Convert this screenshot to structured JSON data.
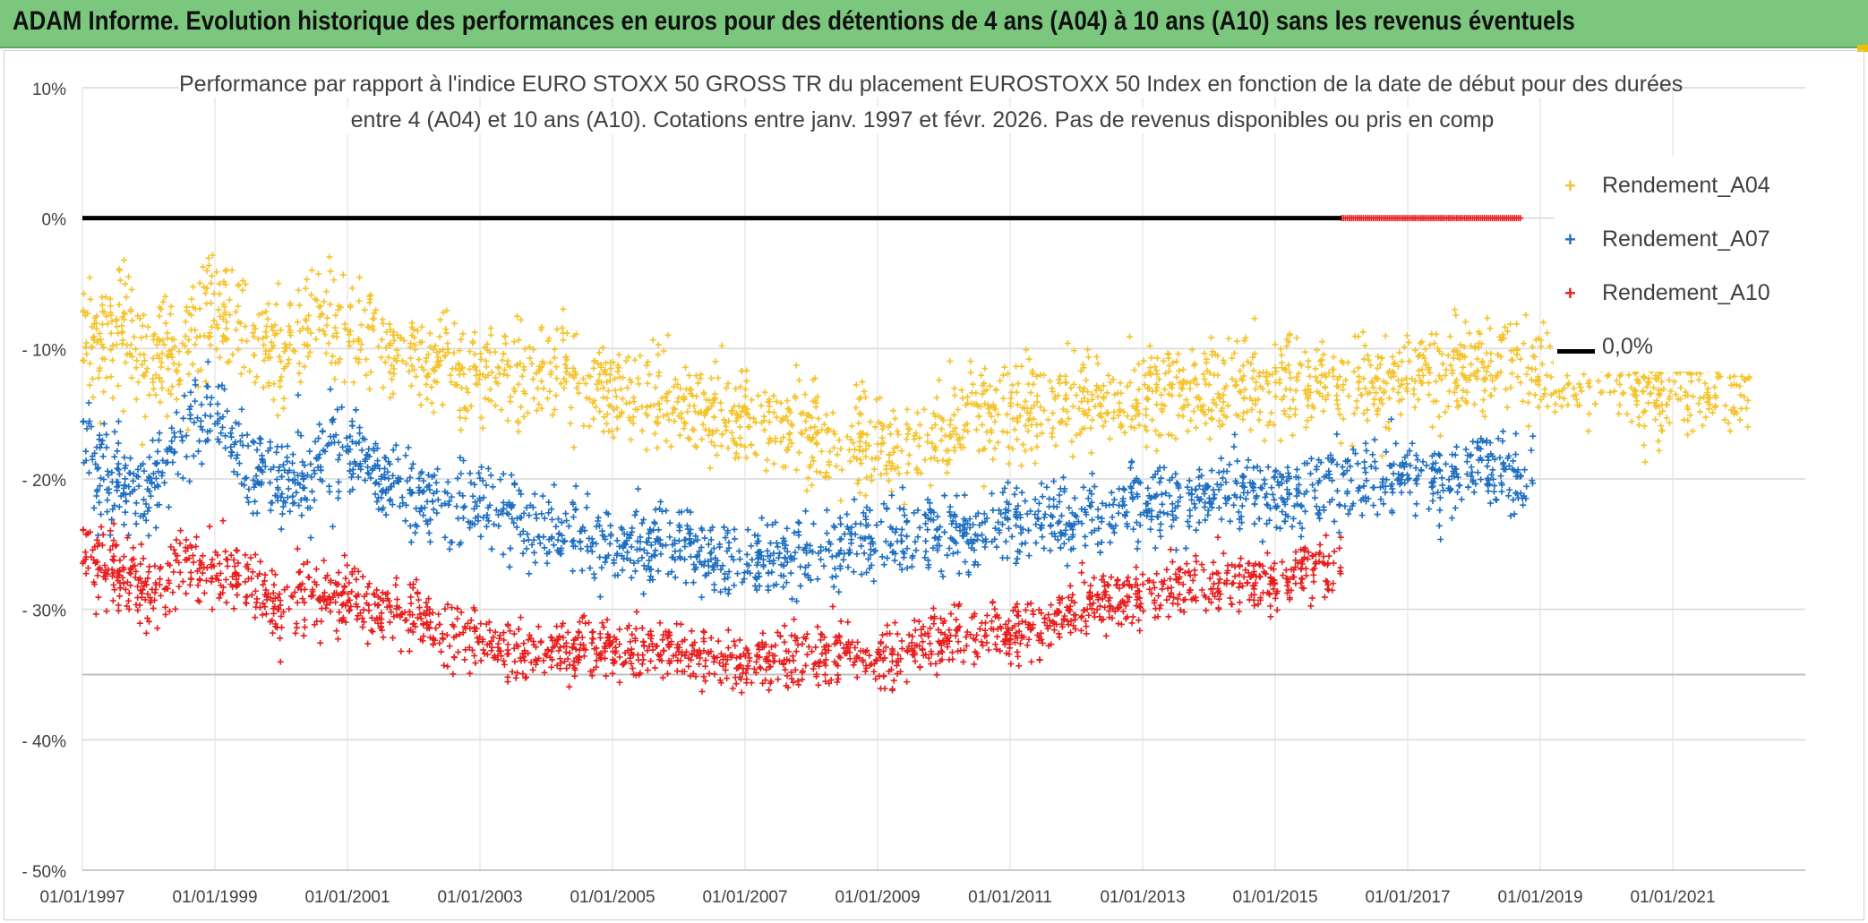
{
  "header": {
    "title": "ADAM Informe. Evolution historique des performances en euros pour des détentions de 4 ans (A04) à 10 ans (A10) sans les revenus éventuels"
  },
  "chart_data": {
    "type": "scatter",
    "title_line1": "Performance par rapport à l'indice EURO STOXX 50 GROSS TR  du placement EUROSTOXX 50 Index en fonction de la date de début pour des durées",
    "title_line2": "entre 4 (A04) et 10 ans (A10). Cotations entre janv. 1997 et févr. 2026. Pas de revenus disponibles ou pris en comp",
    "x_range": [
      1997.0,
      2023.0
    ],
    "y_range": [
      -50,
      10
    ],
    "x_tick_labels": [
      "01/01/1997",
      "01/01/1999",
      "01/01/2001",
      "01/01/2003",
      "01/01/2005",
      "01/01/2007",
      "01/01/2009",
      "01/01/2011",
      "01/01/2013",
      "01/01/2015",
      "01/01/2017",
      "01/01/2019",
      "01/01/2021"
    ],
    "x_tick_years": [
      1997,
      1999,
      2001,
      2003,
      2005,
      2007,
      2009,
      2011,
      2013,
      2015,
      2017,
      2019,
      2021
    ],
    "y_tick_values": [
      10,
      0,
      -10,
      -20,
      -30,
      -40,
      -50
    ],
    "y_tick_labels": [
      "10%",
      "0%",
      "- 10%",
      "- 20%",
      "- 30%",
      "- 40%",
      "- 50%"
    ],
    "series": [
      {
        "name": "Rendement_A04",
        "color": "#f5c32c",
        "x": [
          1997.0,
          1997.5,
          1998.0,
          1998.5,
          1999.0,
          1999.5,
          2000.0,
          2000.5,
          2001.0,
          2001.5,
          2002.0,
          2002.5,
          2003.0,
          2003.5,
          2004.0,
          2004.5,
          2005.0,
          2005.5,
          2006.0,
          2006.5,
          2007.0,
          2007.5,
          2008.0,
          2008.5,
          2009.0,
          2009.5,
          2010.0,
          2010.5,
          2011.0,
          2011.5,
          2012.0,
          2012.5,
          2013.0,
          2013.5,
          2014.0,
          2014.5,
          2015.0,
          2015.5,
          2016.0,
          2016.5,
          2017.0,
          2017.5,
          2018.0,
          2018.5,
          2019.0,
          2019.5,
          2020.0,
          2020.5,
          2021.0,
          2021.5,
          2022.0,
          2022.2
        ],
        "y": [
          -9,
          -8,
          -11,
          -10,
          -6,
          -9,
          -11,
          -8,
          -9,
          -10,
          -11,
          -11,
          -12,
          -12,
          -12,
          -13,
          -13,
          -14,
          -14,
          -15,
          -15,
          -16,
          -16,
          -17,
          -17,
          -18,
          -16,
          -15,
          -15,
          -14,
          -14,
          -14,
          -14,
          -13,
          -13,
          -13,
          -13,
          -13,
          -13,
          -13,
          -12,
          -12,
          -11,
          -11,
          -11,
          -12,
          -12,
          -13,
          -13,
          -13,
          -13,
          -13
        ],
        "spread": 3.2
      },
      {
        "name": "Rendement_A07",
        "color": "#1f6fc0",
        "x": [
          1997.0,
          1997.5,
          1998.0,
          1998.5,
          1999.0,
          1999.5,
          2000.0,
          2000.5,
          2001.0,
          2001.5,
          2002.0,
          2002.5,
          2003.0,
          2003.5,
          2004.0,
          2004.5,
          2005.0,
          2005.5,
          2006.0,
          2006.5,
          2007.0,
          2007.5,
          2008.0,
          2008.5,
          2009.0,
          2009.5,
          2010.0,
          2010.5,
          2011.0,
          2011.5,
          2012.0,
          2012.5,
          2013.0,
          2013.5,
          2014.0,
          2014.5,
          2015.0,
          2015.5,
          2016.0,
          2016.5,
          2017.0,
          2017.5,
          2018.0,
          2018.5,
          2018.9
        ],
        "y": [
          -17,
          -20,
          -21,
          -16,
          -15,
          -19,
          -21,
          -19,
          -18,
          -20,
          -21,
          -22,
          -22,
          -23,
          -24,
          -24,
          -25,
          -25,
          -25,
          -26,
          -26,
          -26,
          -26,
          -25,
          -25,
          -24,
          -24,
          -24,
          -23,
          -23,
          -23,
          -22,
          -22,
          -22,
          -21,
          -21,
          -21,
          -21,
          -20,
          -20,
          -20,
          -20,
          -19,
          -20,
          -20
        ],
        "spread": 2.6
      },
      {
        "name": "Rendement_A10",
        "color": "#e81e1e",
        "x": [
          1997.0,
          1997.5,
          1998.0,
          1998.5,
          1999.0,
          1999.5,
          2000.0,
          2000.5,
          2001.0,
          2001.5,
          2002.0,
          2002.5,
          2003.0,
          2003.5,
          2004.0,
          2004.5,
          2005.0,
          2005.5,
          2006.0,
          2006.5,
          2007.0,
          2007.5,
          2008.0,
          2008.5,
          2009.0,
          2009.5,
          2010.0,
          2010.5,
          2011.0,
          2011.5,
          2012.0,
          2012.5,
          2013.0,
          2013.5,
          2014.0,
          2014.5,
          2015.0,
          2015.5,
          2016.0
        ],
        "y": [
          -25,
          -27,
          -29,
          -26,
          -27,
          -28,
          -30,
          -29,
          -29,
          -30,
          -31,
          -32,
          -32,
          -33,
          -33,
          -33,
          -33,
          -33,
          -33,
          -34,
          -34,
          -34,
          -33,
          -33,
          -34,
          -33,
          -32,
          -32,
          -32,
          -31,
          -30,
          -29,
          -29,
          -28,
          -28,
          -28,
          -28,
          -27,
          -27
        ],
        "spread": 2.0
      },
      {
        "name": "0,0%",
        "color": "#000000",
        "x": [
          1997.0,
          2016.0
        ],
        "y": [
          0,
          0
        ]
      }
    ],
    "extra_red_zero_x_range": [
      2016.0,
      2018.7
    ],
    "legend": [
      "Rendement_A04",
      "Rendement_A07",
      "Rendement_A10",
      "0,0%"
    ],
    "legend_position": "top-right",
    "grid": true
  }
}
